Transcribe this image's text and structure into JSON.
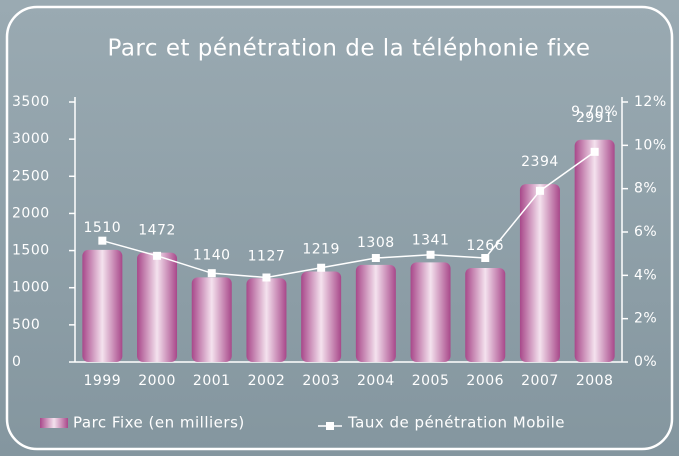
{
  "chart_data": {
    "type": "bar_line",
    "title": "Parc et pénétration de la téléphonie fixe",
    "categories": [
      "1999",
      "2000",
      "2001",
      "2002",
      "2003",
      "2004",
      "2005",
      "2006",
      "2007",
      "2008"
    ],
    "series": [
      {
        "name": "Parc Fixe (en milliers)",
        "type": "bar",
        "color": "#a8488a",
        "values": [
          1510,
          1472,
          1140,
          1127,
          1219,
          1308,
          1341,
          1266,
          2394,
          2991
        ]
      },
      {
        "name": "Taux de pénétration Mobile",
        "type": "line",
        "axis": "y2",
        "color": "#ffffff",
        "values": [
          5.6,
          4.9,
          4.1,
          3.9,
          4.35,
          4.8,
          4.95,
          4.8,
          7.9,
          9.7
        ],
        "value_labels": [
          null,
          null,
          null,
          null,
          null,
          null,
          null,
          null,
          null,
          "9,70%"
        ]
      }
    ],
    "ylim": [
      0,
      3500
    ],
    "yticks": [
      0,
      500,
      1000,
      1500,
      2000,
      2500,
      3000,
      3500
    ],
    "y2lim": [
      0,
      12
    ],
    "y2ticks": [
      {
        "value": 0,
        "label": "0%"
      },
      {
        "value": 2,
        "label": "2%"
      },
      {
        "value": 4,
        "label": "4%"
      },
      {
        "value": 6,
        "label": "6%"
      },
      {
        "value": 8,
        "label": "8%"
      },
      {
        "value": 10,
        "label": "10%"
      },
      {
        "value": 12,
        "label": "12%"
      }
    ]
  }
}
